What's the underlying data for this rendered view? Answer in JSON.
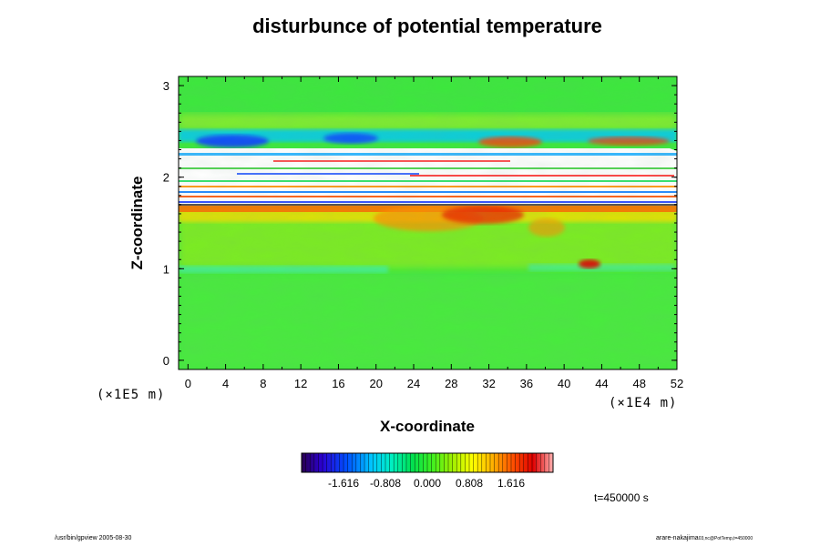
{
  "chart_data": {
    "type": "heatmap",
    "title": "disturbunce of potential temperature",
    "xlabel": "X-coordinate",
    "ylabel": "Z-coordinate",
    "x_unit": "(×1E4 m)",
    "y_unit": "(×1E5 m)",
    "xlim": [
      -1,
      52
    ],
    "ylim": [
      -0.1,
      3.1
    ],
    "xticks": [
      "0",
      "4",
      "8",
      "12",
      "16",
      "20",
      "24",
      "28",
      "32",
      "36",
      "40",
      "44",
      "48",
      "52"
    ],
    "yticks": [
      "0",
      "1",
      "2",
      "3"
    ],
    "colorbar": {
      "ticks": [
        "-1.616",
        "-0.808",
        "0.000",
        "0.808",
        "1.616"
      ],
      "range": [
        -2.424,
        2.424
      ]
    },
    "field_description": "2D disturbance field; near-zero (green) everywhere except a band between z≈1.7 and z≈2.5 with strong positive (red) values along z≈1.65–1.75, negative (blue) patches near z≈2.4, white out-of-range streaks between z≈1.75 and z≈2.35, and a small red blob near x≈43, z≈1.05"
  },
  "annotations": {
    "time": "t=450000 s",
    "footer_left": "/usr/bin/gpview 2005-08-30",
    "footer_right_main": "arare-nakajima",
    "footer_right_sub": "03,nc@PotTemp,t=450000"
  }
}
